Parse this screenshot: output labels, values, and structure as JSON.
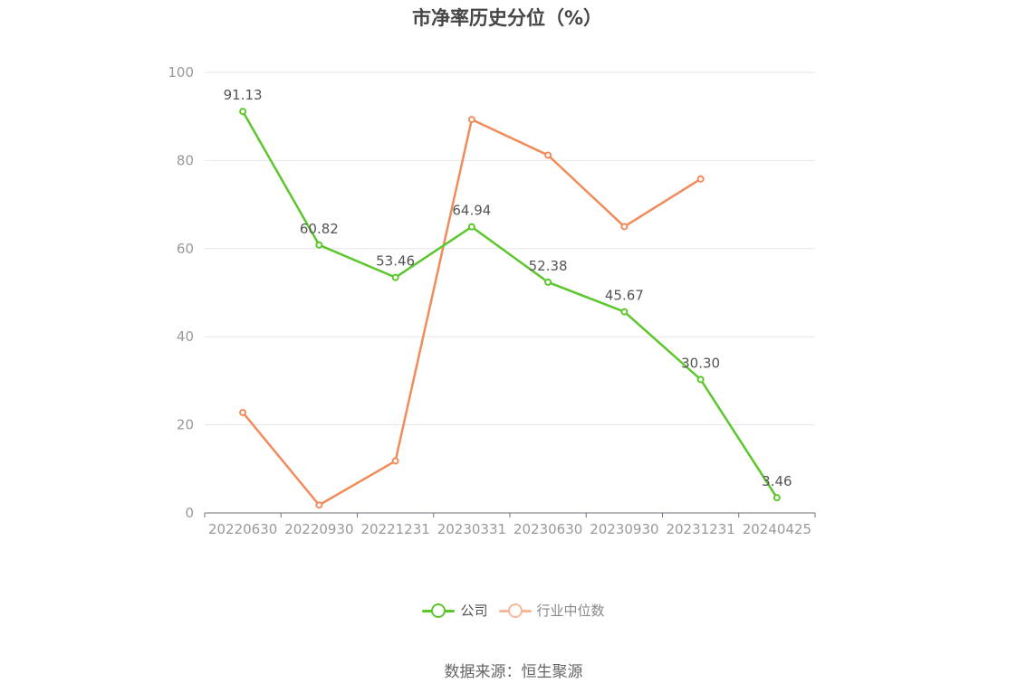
{
  "title": "市净率历史分位（%）",
  "source": "数据来源：恒生聚源",
  "chart_data": {
    "type": "line",
    "categories": [
      "20220630",
      "20220930",
      "20221231",
      "20230331",
      "20230630",
      "20230930",
      "20231231",
      "20240425"
    ],
    "ylim": [
      0,
      100
    ],
    "yticks": [
      0,
      20,
      40,
      60,
      80,
      100
    ],
    "grid": true,
    "legend_position": "bottom",
    "series": [
      {
        "name": "公司",
        "color": "#5cc72c",
        "values": [
          91.13,
          60.82,
          53.46,
          64.94,
          52.38,
          45.67,
          30.3,
          3.46
        ],
        "labels": [
          "91.13",
          "60.82",
          "53.46",
          "64.94",
          "52.38",
          "45.67",
          "30.30",
          "3.46"
        ],
        "show_labels": true
      },
      {
        "name": "行业中位数",
        "color": "#f28b5a",
        "legend_color": "#f7b89a",
        "values": [
          22.8,
          1.8,
          11.8,
          89.3,
          81.2,
          65.0,
          75.8,
          null
        ],
        "show_labels": false
      }
    ]
  }
}
